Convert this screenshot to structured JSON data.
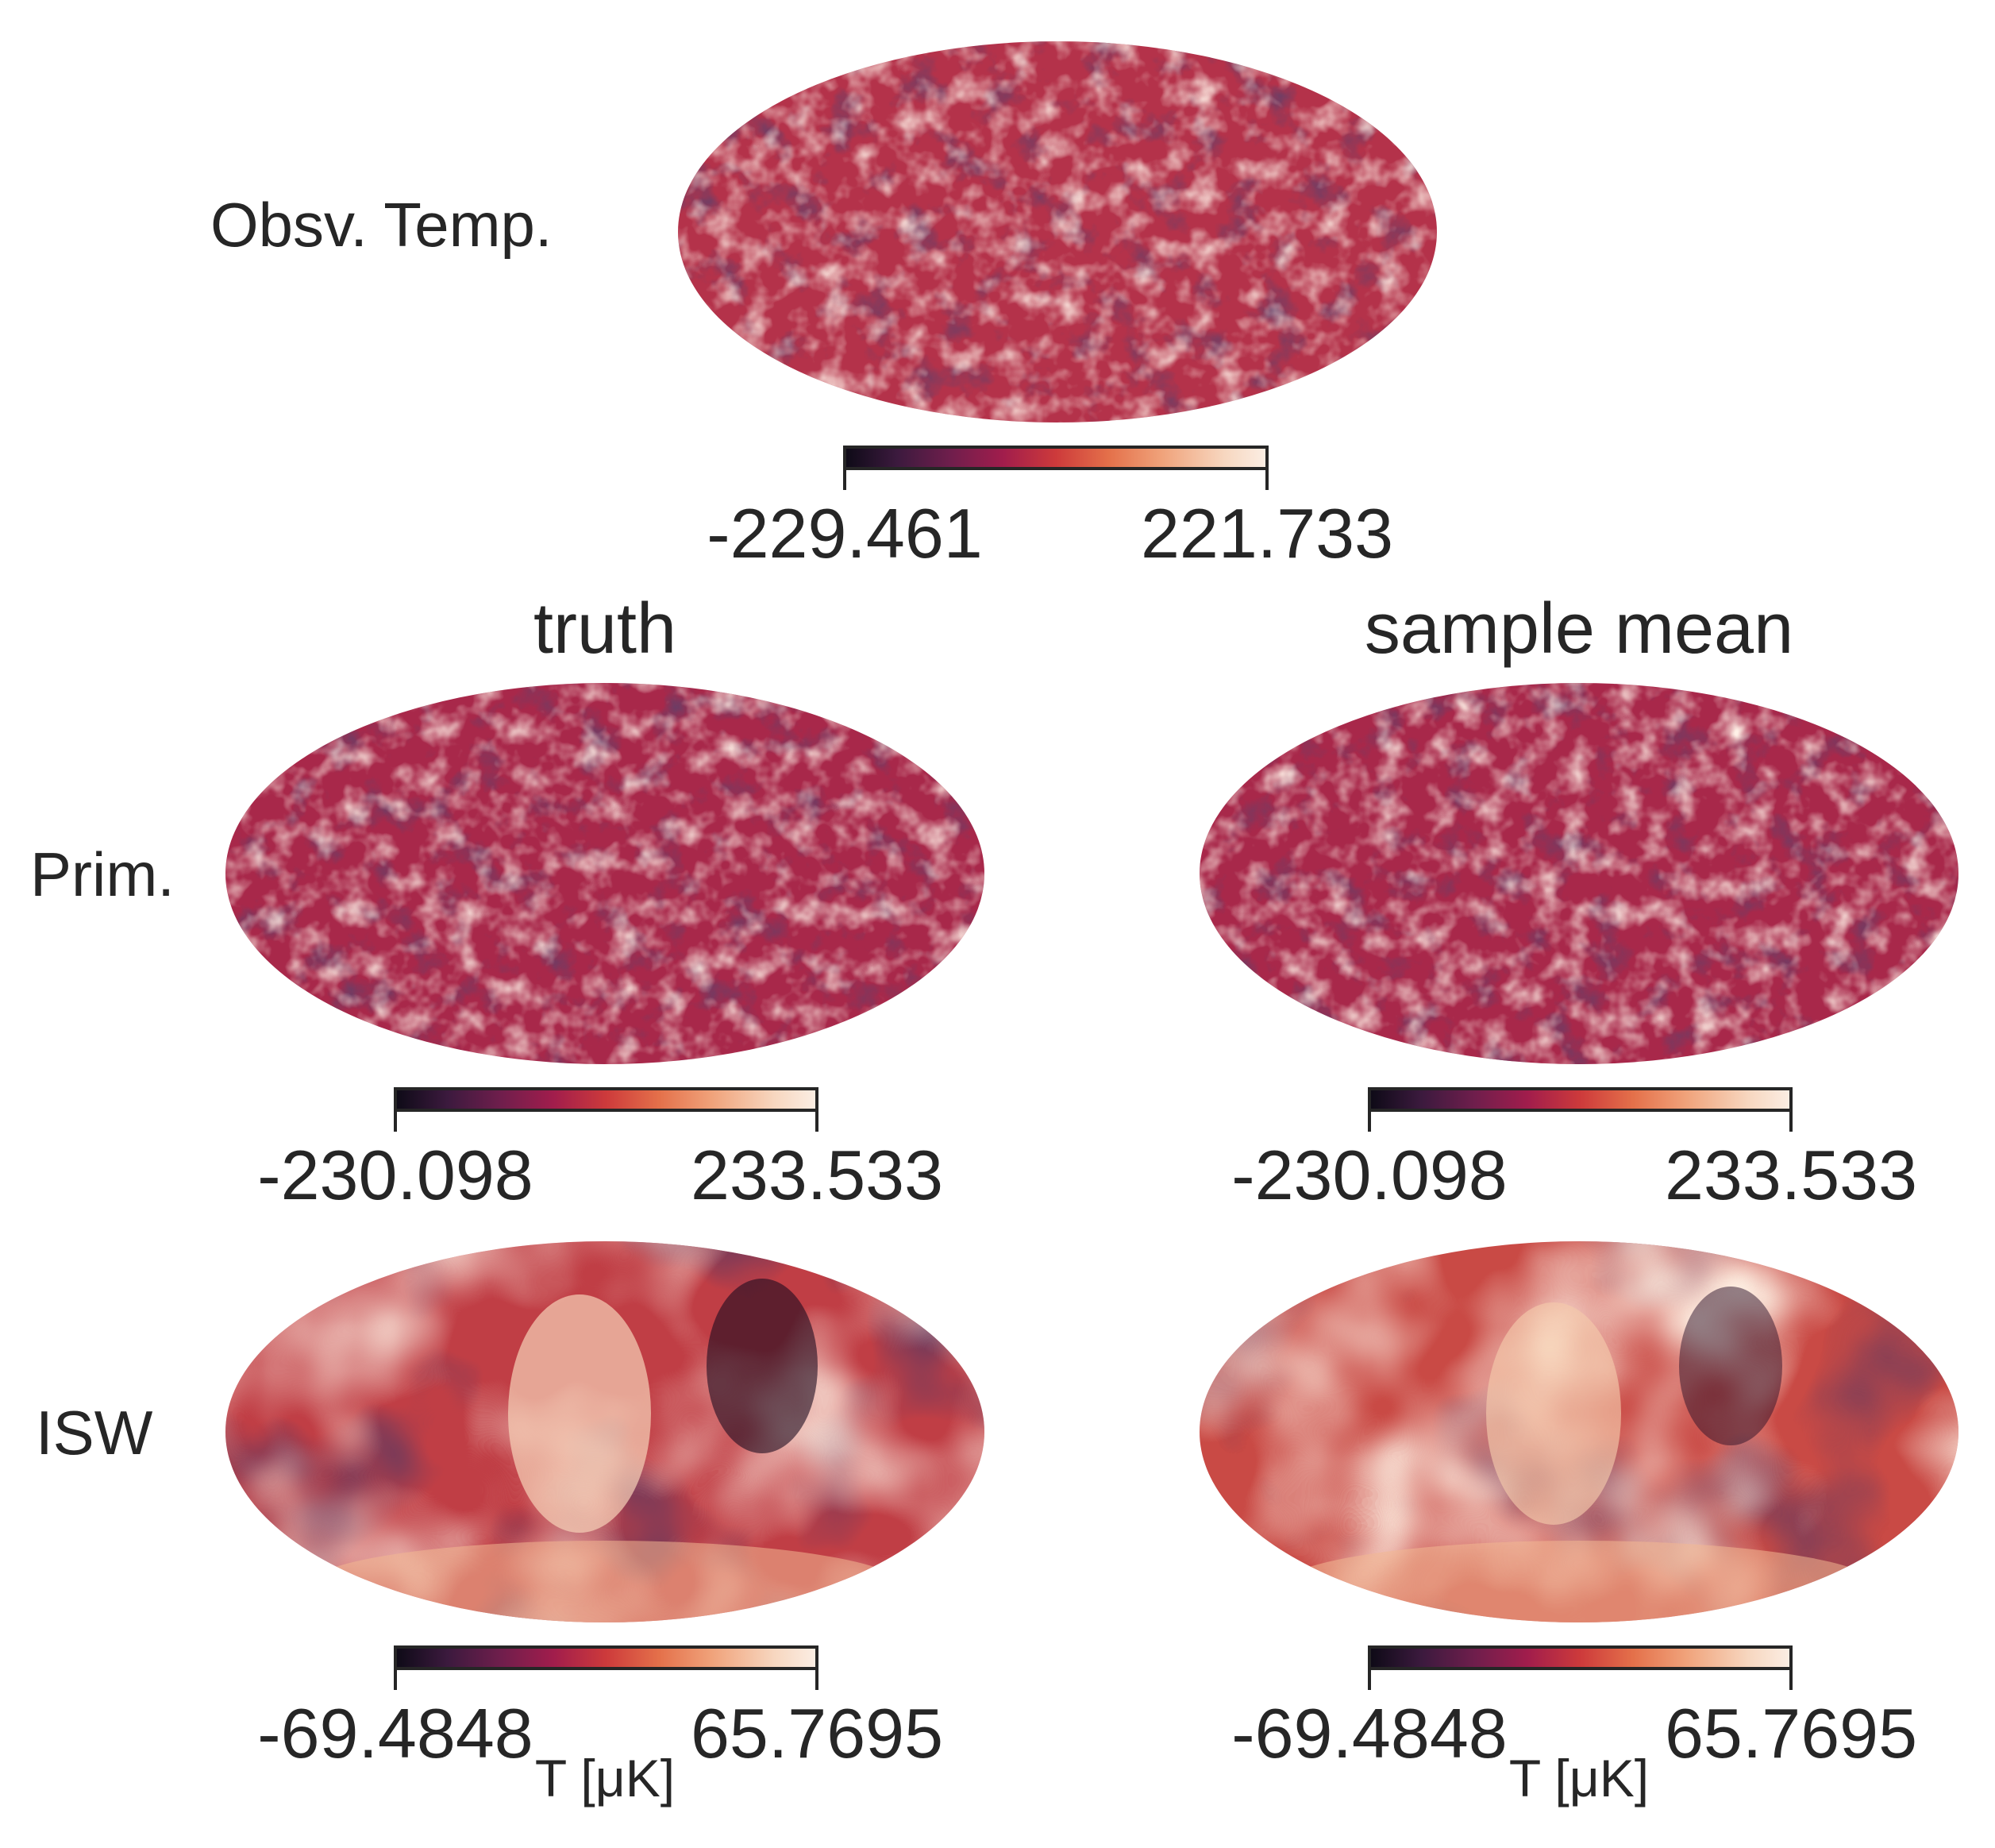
{
  "row_labels": {
    "observed": "Obsv. Temp.",
    "primordial": "Prim.",
    "isw": "ISW"
  },
  "column_titles": {
    "truth": "truth",
    "sample_mean": "sample mean"
  },
  "colorbars": {
    "observed": {
      "min": "-229.461",
      "max": "221.733"
    },
    "prim_truth": {
      "min": "-230.098",
      "max": "233.533"
    },
    "prim_mean": {
      "min": "-230.098",
      "max": "233.533"
    },
    "isw_truth": {
      "min": "-69.4848",
      "max": "65.7695",
      "unit": "T [μK]"
    },
    "isw_mean": {
      "min": "-69.4848",
      "max": "65.7695",
      "unit": "T [μK]"
    }
  },
  "colormap": [
    "#0d0a16",
    "#3c1a3e",
    "#6f1e4c",
    "#a11d4c",
    "#cd3a3b",
    "#e4704a",
    "#f0a27a",
    "#f7d7c0",
    "#fbeee4"
  ]
}
